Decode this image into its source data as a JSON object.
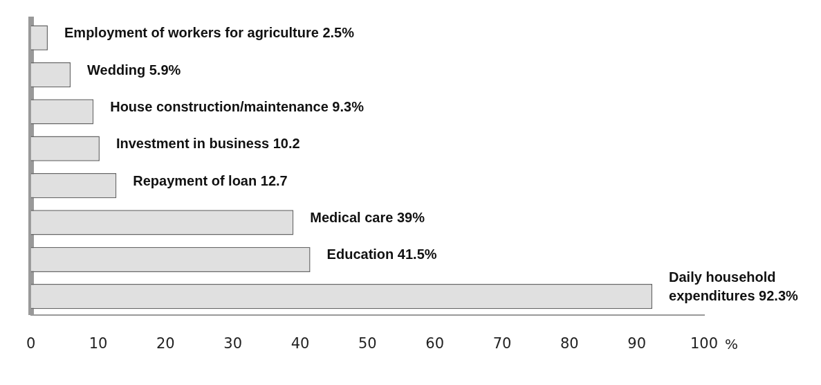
{
  "chart_data": {
    "type": "bar",
    "orientation": "horizontal",
    "xlabel": "%",
    "categories": [
      "Employment of workers for agriculture",
      "Wedding",
      "House construction/maintenance",
      "Investment in business",
      "Repayment of loan",
      "Medical care",
      "Education",
      "Daily household expenditures"
    ],
    "values": [
      2.5,
      5.9,
      9.3,
      10.2,
      12.7,
      39,
      41.5,
      92.3
    ],
    "value_labels": [
      "2.5%",
      "5.9%",
      "9.3%",
      "10.2",
      "12.7",
      "39%",
      "41.5%",
      "92.3%"
    ],
    "color": "#e0e0e0",
    "xlim": [
      0,
      100
    ],
    "xticks": [
      0,
      10,
      20,
      30,
      40,
      50,
      60,
      70,
      80,
      90,
      100
    ],
    "tick_labels": "x",
    "grid": false,
    "legend": false
  }
}
